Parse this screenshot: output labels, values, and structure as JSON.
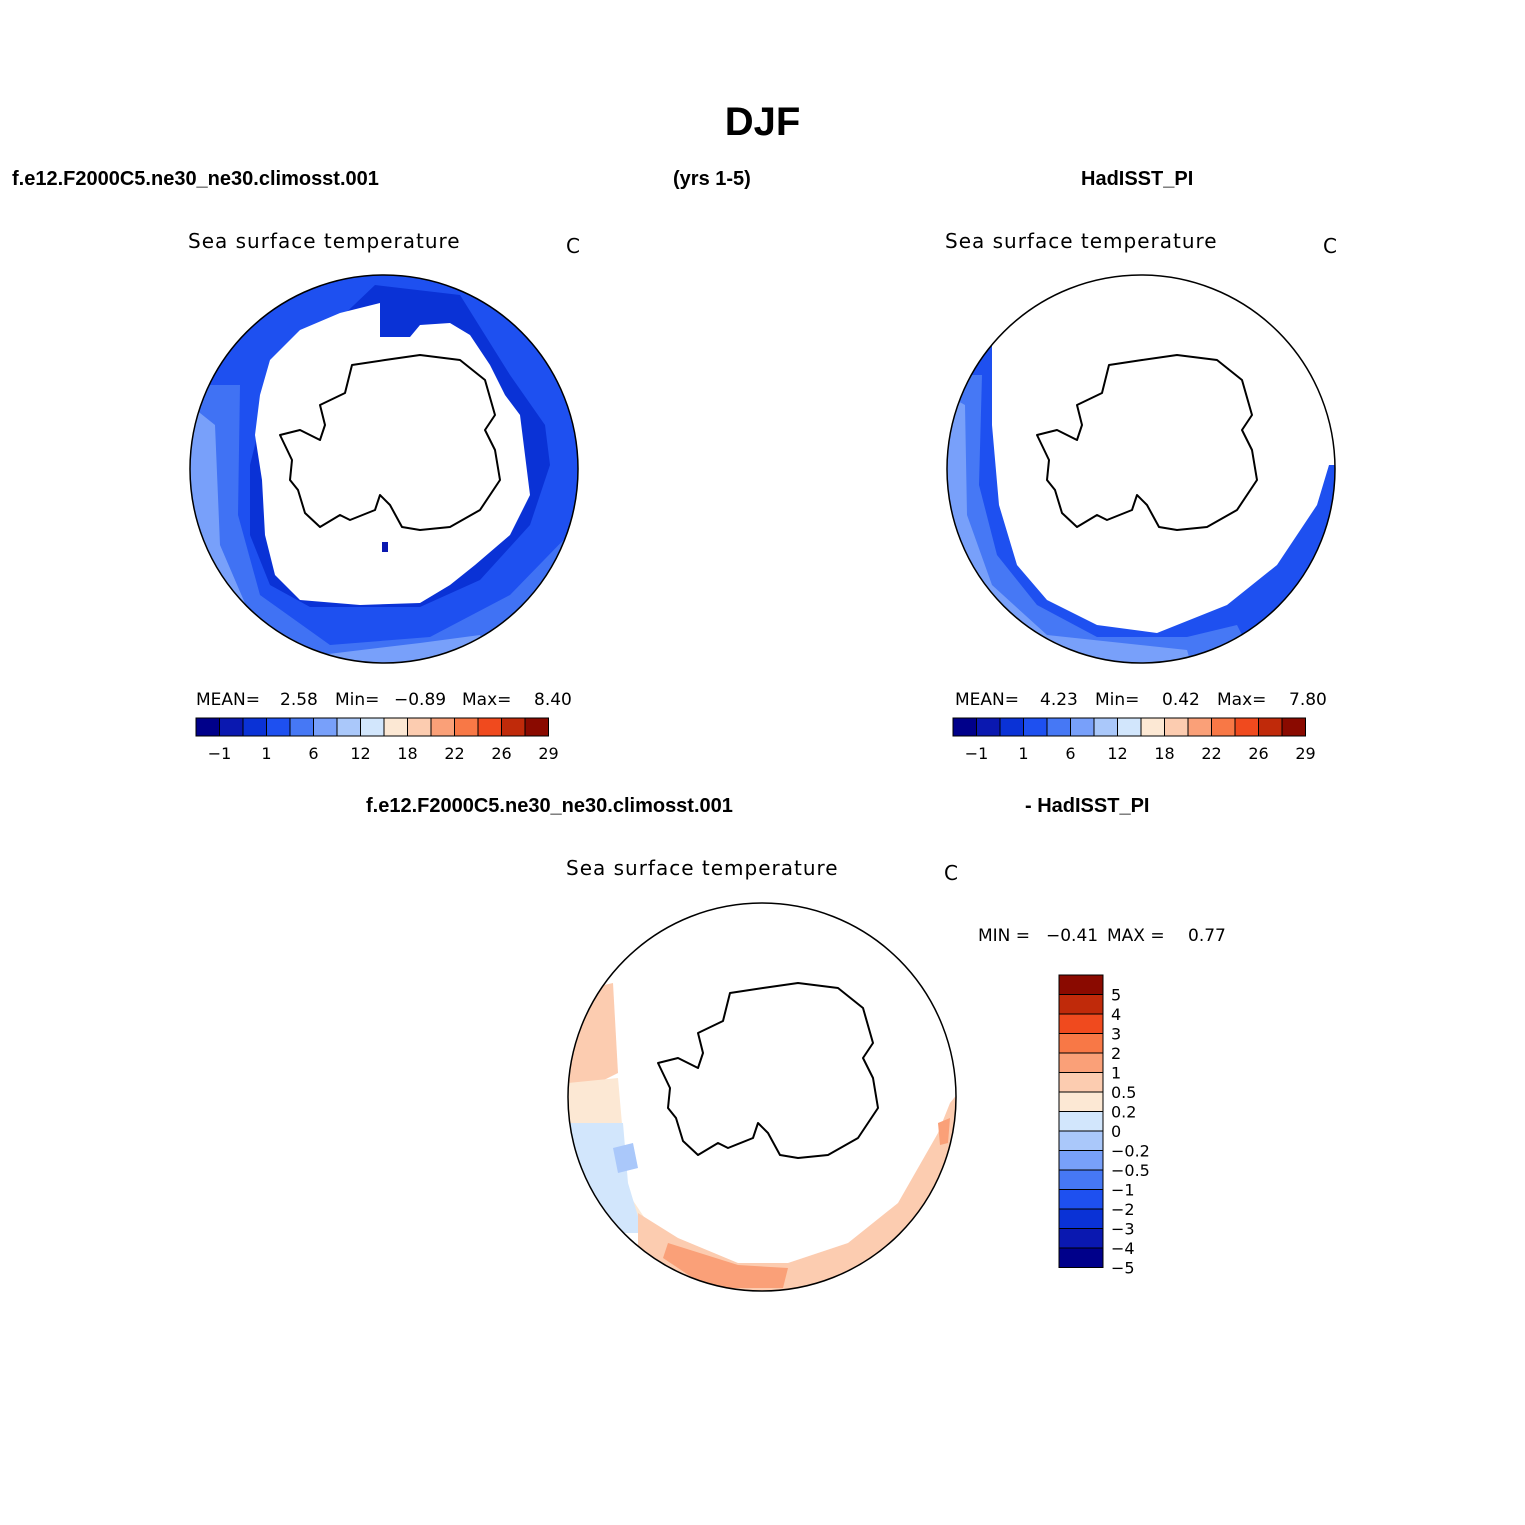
{
  "header": {
    "title": "DJF",
    "case_name": "f.e12.F2000C5.ne30_ne30.climosst.001",
    "years": "(yrs 1-5)",
    "obs_name": "HadISST_PI",
    "diff_case_name": "f.e12.F2000C5.ne30_ne30.climosst.001",
    "diff_obs_name": "- HadISST_PI"
  },
  "colors": {
    "abs_scale": [
      "#00008a",
      "#0a18b0",
      "#0a32d6",
      "#1e50f0",
      "#4678f5",
      "#78a0fa",
      "#aac8fa",
      "#d2e6fc",
      "#fce8d4",
      "#fcccb0",
      "#faa078",
      "#f87846",
      "#f04a1e",
      "#c02a0a",
      "#8a0a00"
    ],
    "diff_scale": [
      "#00008a",
      "#0a18b0",
      "#0a32d6",
      "#1e50f0",
      "#4678f5",
      "#78a0fa",
      "#aac8fa",
      "#d2e6fc",
      "#fce8d4",
      "#fcccb0",
      "#faa078",
      "#f87846",
      "#f04a1e",
      "#c02a0a",
      "#8a0a00"
    ]
  },
  "chart_data": [
    {
      "type": "heatmap",
      "panel": "model",
      "title": "Sea surface temperature",
      "units": "C",
      "stats": {
        "mean_label": "MEAN=",
        "mean": "2.58",
        "min_label": "Min=",
        "min": "−0.89",
        "max_label": "Max=",
        "max": "8.40"
      },
      "colorbar_labels": [
        "−1",
        "1",
        "6",
        "12",
        "18",
        "22",
        "26",
        "29"
      ]
    },
    {
      "type": "heatmap",
      "panel": "observations",
      "title": "Sea surface temperature",
      "units": "C",
      "stats": {
        "mean_label": "MEAN=",
        "mean": "4.23",
        "min_label": "Min=",
        "min": "0.42",
        "max_label": "Max=",
        "max": "7.80"
      },
      "colorbar_labels": [
        "−1",
        "1",
        "6",
        "12",
        "18",
        "22",
        "26",
        "29"
      ]
    },
    {
      "type": "heatmap",
      "panel": "difference",
      "title": "Sea surface temperature",
      "units": "C",
      "stats": {
        "min_label": "MIN =",
        "min": "−0.41",
        "max_label": "MAX =",
        "max": "0.77"
      },
      "colorbar_labels": [
        "5",
        "4",
        "3",
        "2",
        "1",
        "0.5",
        "0.2",
        "0",
        "−0.2",
        "−0.5",
        "−1",
        "−2",
        "−3",
        "−4",
        "−5"
      ]
    }
  ]
}
